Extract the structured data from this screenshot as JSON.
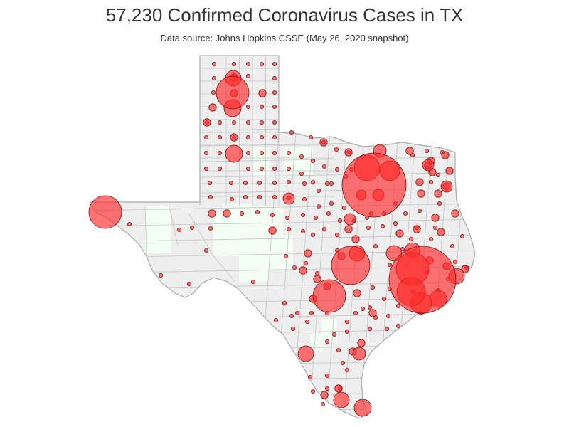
{
  "title": "57,230 Confirmed Coronavirus Cases in TX",
  "subtitle": "Data source: Johns Hopkins CSSE (May 26, 2020 snapshot)",
  "colors": {
    "state_fill": "#eeeeee",
    "state_stroke": "#aaaaaa",
    "county_line": "#c4c4c4",
    "no_case_fill": "#f4fff4",
    "bubble_fill": "#ff2a2a",
    "bubble_stroke": "#7a1010"
  },
  "map_data": {
    "region": "Texas",
    "marker": "proportional bubble per county",
    "sizes": [
      "tiny",
      "small",
      "medium",
      "large",
      "xlarge"
    ]
  }
}
